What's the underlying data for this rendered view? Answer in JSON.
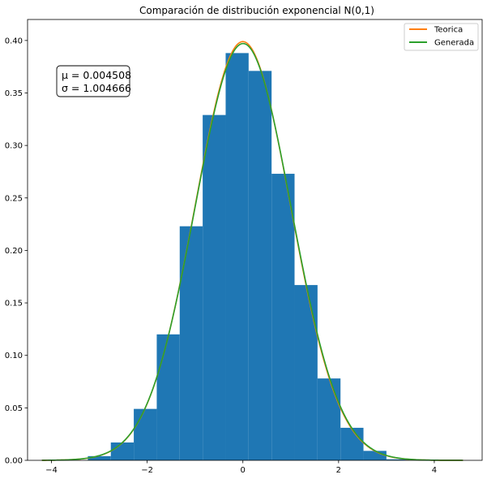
{
  "chart_data": {
    "type": "bar",
    "title": "Comparación de distribución exponencial N(0,1)",
    "xlabel": "",
    "ylabel": "",
    "xlim": [
      -4.5,
      5.0
    ],
    "ylim": [
      0.0,
      0.42
    ],
    "x_ticks": [
      -4,
      -2,
      0,
      2,
      4
    ],
    "x_tick_labels": [
      "−4",
      "−2",
      "0",
      "2",
      "4"
    ],
    "y_ticks": [
      0.0,
      0.05,
      0.1,
      0.15,
      0.2,
      0.25,
      0.3,
      0.35,
      0.4
    ],
    "y_tick_labels": [
      "0.00",
      "0.05",
      "0.10",
      "0.15",
      "0.20",
      "0.25",
      "0.30",
      "0.35",
      "0.40"
    ],
    "grid": false,
    "legend_position": "top-right",
    "histogram": {
      "color": "#1f77b4",
      "bin_edges": [
        -3.24,
        -2.76,
        -2.28,
        -1.8,
        -1.32,
        -0.84,
        -0.36,
        0.12,
        0.6,
        1.08,
        1.56,
        2.04,
        2.52,
        3.0,
        3.48
      ],
      "values": [
        0.004,
        0.017,
        0.049,
        0.12,
        0.223,
        0.329,
        0.388,
        0.371,
        0.273,
        0.167,
        0.078,
        0.031,
        0.009,
        0.001
      ]
    },
    "series": [
      {
        "name": "Teorica",
        "color": "#ff7f0e",
        "mu": 0.0,
        "sigma": 1.0,
        "x_range": [
          -4.2,
          4.6
        ]
      },
      {
        "name": "Generada",
        "color": "#2ca02c",
        "mu": 0.004508,
        "sigma": 1.004666,
        "x_range": [
          -4.2,
          4.6
        ]
      }
    ],
    "annotation": {
      "mu_label": "μ = 0.004508",
      "sigma_label": "σ = 1.004666",
      "position": "top-left"
    }
  }
}
